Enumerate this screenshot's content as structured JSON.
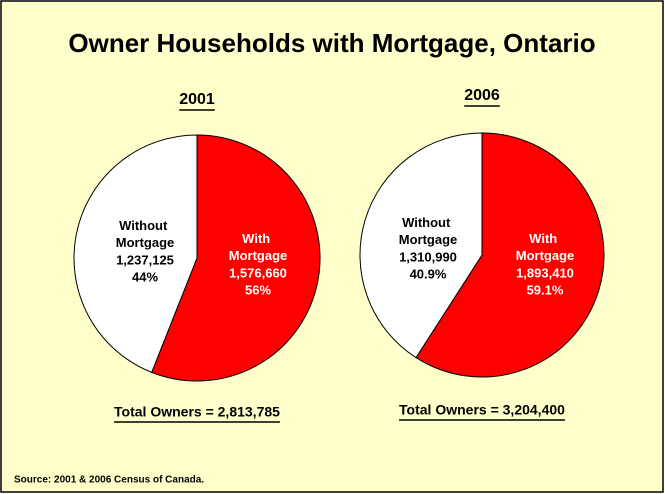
{
  "title": "Owner Households with Mortgage, Ontario",
  "source": "Source: 2001 & 2006 Census of Canada.",
  "chart_data": [
    {
      "type": "pie",
      "title": "2001",
      "categories": [
        "Without Mortgage",
        "With Mortgage"
      ],
      "values": [
        44,
        56
      ],
      "value_labels": [
        "44%",
        "56%"
      ],
      "count_labels": [
        "1,237,125",
        "1,576,660"
      ],
      "colors": [
        "#ffffff",
        "#ff0000"
      ],
      "total": "Total Owners = 2,813,785"
    },
    {
      "type": "pie",
      "title": "2006",
      "categories": [
        "Without Mortgage",
        "With Mortgage"
      ],
      "values": [
        40.9,
        59.1
      ],
      "value_labels": [
        "40.9%",
        "59.1%"
      ],
      "count_labels": [
        "1,310,990",
        "1,893,410"
      ],
      "colors": [
        "#ffffff",
        "#ff0000"
      ],
      "total": "Total Owners = 3,204,400"
    }
  ]
}
